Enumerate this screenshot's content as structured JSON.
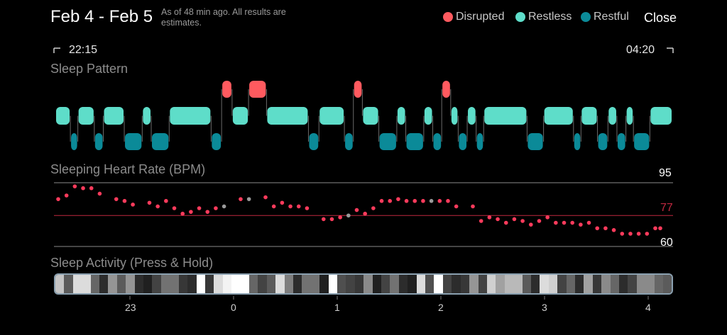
{
  "header": {
    "title": "Feb 4 - Feb 5",
    "subtitle": "As of 48 min ago. All results are estimates.",
    "close_label": "Close"
  },
  "legend": [
    {
      "label": "Disrupted",
      "color": "#ff5a5f"
    },
    {
      "label": "Restless",
      "color": "#5eddc9"
    },
    {
      "label": "Restful",
      "color": "#0b8a98"
    }
  ],
  "time_range": {
    "start": "22:15",
    "end": "04:20"
  },
  "sleep_pattern": {
    "label": "Sleep Pattern",
    "segments": [
      {
        "state": "restless",
        "start": 0,
        "end": 1.0
      },
      {
        "state": "restful",
        "start": 1.0,
        "end": 1.5
      },
      {
        "state": "restless",
        "start": 1.5,
        "end": 2.6
      },
      {
        "state": "restful",
        "start": 2.6,
        "end": 3.2
      },
      {
        "state": "restless",
        "start": 3.2,
        "end": 4.6
      },
      {
        "state": "restful",
        "start": 4.6,
        "end": 5.8
      },
      {
        "state": "restless",
        "start": 5.8,
        "end": 6.4
      },
      {
        "state": "restful",
        "start": 6.4,
        "end": 7.6
      },
      {
        "state": "restless",
        "start": 7.6,
        "end": 10.4
      },
      {
        "state": "restful",
        "start": 10.4,
        "end": 11.1
      },
      {
        "state": "disrupted",
        "start": 11.1,
        "end": 11.8
      },
      {
        "state": "restless",
        "start": 11.8,
        "end": 12.9
      },
      {
        "state": "disrupted",
        "start": 12.9,
        "end": 14.1
      },
      {
        "state": "restless",
        "start": 14.1,
        "end": 16.9
      },
      {
        "state": "restful",
        "start": 16.9,
        "end": 17.6
      },
      {
        "state": "restless",
        "start": 17.6,
        "end": 19.3
      },
      {
        "state": "restful",
        "start": 19.3,
        "end": 19.9
      },
      {
        "state": "disrupted",
        "start": 19.9,
        "end": 20.5
      },
      {
        "state": "restless",
        "start": 20.5,
        "end": 21.6
      },
      {
        "state": "restful",
        "start": 21.6,
        "end": 22.8
      },
      {
        "state": "restless",
        "start": 22.8,
        "end": 23.4
      },
      {
        "state": "restful",
        "start": 23.4,
        "end": 24.6
      },
      {
        "state": "restless",
        "start": 24.6,
        "end": 25.2
      },
      {
        "state": "restful",
        "start": 25.2,
        "end": 25.8
      },
      {
        "state": "disrupted",
        "start": 25.8,
        "end": 26.4
      },
      {
        "state": "restless",
        "start": 26.4,
        "end": 26.9
      },
      {
        "state": "restful",
        "start": 26.9,
        "end": 27.5
      },
      {
        "state": "restless",
        "start": 27.5,
        "end": 28.1
      },
      {
        "state": "restful",
        "start": 28.1,
        "end": 28.6
      },
      {
        "state": "restless",
        "start": 28.6,
        "end": 31.5
      },
      {
        "state": "restful",
        "start": 31.5,
        "end": 32.6
      },
      {
        "state": "restless",
        "start": 32.6,
        "end": 34.6
      },
      {
        "state": "restful",
        "start": 34.6,
        "end": 35.1
      },
      {
        "state": "restless",
        "start": 35.1,
        "end": 36.2
      },
      {
        "state": "restful",
        "start": 36.2,
        "end": 36.9
      },
      {
        "state": "restless",
        "start": 36.9,
        "end": 37.5
      },
      {
        "state": "restful",
        "start": 37.5,
        "end": 38.1
      },
      {
        "state": "restless",
        "start": 38.1,
        "end": 38.6
      },
      {
        "state": "restful",
        "start": 38.6,
        "end": 39.7
      },
      {
        "state": "restless",
        "start": 39.7,
        "end": 41.2
      }
    ],
    "total_units": 41.2
  },
  "heart_rate": {
    "label": "Sleeping Heart Rate (BPM)",
    "ref_lines": [
      {
        "value": 95,
        "label": "95",
        "color": "#8a8a8a",
        "label_color": "#ffffff"
      },
      {
        "value": 77,
        "label": "77",
        "color": "#c0283f",
        "label_color": "#c0283f"
      },
      {
        "value": 60,
        "label": "60",
        "color": "#8a8a8a",
        "label_color": "#ffffff"
      }
    ],
    "ylim": [
      60,
      95
    ],
    "points": [
      {
        "t": 0.0,
        "v": 86
      },
      {
        "t": 0.5,
        "v": 88
      },
      {
        "t": 1.0,
        "v": 93
      },
      {
        "t": 1.5,
        "v": 92
      },
      {
        "t": 2.0,
        "v": 92
      },
      {
        "t": 2.5,
        "v": 89
      },
      {
        "t": 3.5,
        "v": 86
      },
      {
        "t": 4.0,
        "v": 85
      },
      {
        "t": 4.5,
        "v": 83
      },
      {
        "t": 5.5,
        "v": 84
      },
      {
        "t": 6.0,
        "v": 82
      },
      {
        "t": 6.5,
        "v": 85
      },
      {
        "t": 7.0,
        "v": 81
      },
      {
        "t": 7.5,
        "v": 78
      },
      {
        "t": 8.0,
        "v": 79
      },
      {
        "t": 8.5,
        "v": 81
      },
      {
        "t": 9.0,
        "v": 79
      },
      {
        "t": 9.5,
        "v": 81
      },
      {
        "t": 10.0,
        "v": 82,
        "gray": true
      },
      {
        "t": 11.0,
        "v": 86
      },
      {
        "t": 11.5,
        "v": 86,
        "gray": true
      },
      {
        "t": 12.5,
        "v": 87
      },
      {
        "t": 13.0,
        "v": 82
      },
      {
        "t": 13.5,
        "v": 84
      },
      {
        "t": 14.0,
        "v": 82
      },
      {
        "t": 14.5,
        "v": 82
      },
      {
        "t": 15.0,
        "v": 81
      },
      {
        "t": 16.0,
        "v": 75
      },
      {
        "t": 16.5,
        "v": 75
      },
      {
        "t": 17.0,
        "v": 76
      },
      {
        "t": 17.5,
        "v": 77,
        "gray": true
      },
      {
        "t": 18.0,
        "v": 80
      },
      {
        "t": 18.5,
        "v": 78
      },
      {
        "t": 19.0,
        "v": 81
      },
      {
        "t": 19.5,
        "v": 85
      },
      {
        "t": 20.0,
        "v": 85
      },
      {
        "t": 20.5,
        "v": 86
      },
      {
        "t": 21.0,
        "v": 85
      },
      {
        "t": 21.5,
        "v": 85
      },
      {
        "t": 22.0,
        "v": 85
      },
      {
        "t": 22.5,
        "v": 85,
        "gray": true
      },
      {
        "t": 23.0,
        "v": 85
      },
      {
        "t": 23.5,
        "v": 85
      },
      {
        "t": 24.0,
        "v": 82
      },
      {
        "t": 25.0,
        "v": 82
      },
      {
        "t": 25.5,
        "v": 74
      },
      {
        "t": 26.0,
        "v": 76
      },
      {
        "t": 26.5,
        "v": 75
      },
      {
        "t": 27.0,
        "v": 73
      },
      {
        "t": 27.5,
        "v": 75
      },
      {
        "t": 28.0,
        "v": 74
      },
      {
        "t": 28.5,
        "v": 72
      },
      {
        "t": 29.0,
        "v": 74
      },
      {
        "t": 29.5,
        "v": 76
      },
      {
        "t": 30.0,
        "v": 73
      },
      {
        "t": 30.5,
        "v": 73
      },
      {
        "t": 31.0,
        "v": 73
      },
      {
        "t": 31.5,
        "v": 72
      },
      {
        "t": 32.0,
        "v": 73
      },
      {
        "t": 32.5,
        "v": 70
      },
      {
        "t": 33.0,
        "v": 70
      },
      {
        "t": 33.5,
        "v": 69
      },
      {
        "t": 34.0,
        "v": 67
      },
      {
        "t": 34.5,
        "v": 67
      },
      {
        "t": 35.0,
        "v": 67
      },
      {
        "t": 35.5,
        "v": 67
      },
      {
        "t": 36.0,
        "v": 70
      },
      {
        "t": 36.3,
        "v": 70
      }
    ],
    "t_range": [
      0,
      36.3
    ]
  },
  "sleep_activity": {
    "label": "Sleep Activity (Press & Hold)",
    "levels": [
      0.75,
      0.3,
      0.85,
      0.85,
      0.35,
      0.1,
      0.55,
      0.3,
      0.55,
      0.1,
      0.05,
      0.2,
      0.4,
      0.4,
      0.15,
      0.1,
      1.0,
      0.15,
      0.85,
      0.95,
      1.0,
      1.0,
      0.35,
      0.2,
      0.3,
      0.85,
      0.45,
      0.1,
      0.4,
      0.4,
      0.05,
      1.0,
      0.25,
      0.2,
      0.15,
      0.5,
      0.05,
      0.2,
      0.4,
      0.1,
      0.05,
      0.85,
      0.25,
      1.0,
      0.2,
      0.1,
      0.15,
      0.55,
      0.2,
      0.8,
      0.6,
      0.7,
      0.7,
      0.3,
      0.1,
      0.85,
      0.8,
      0.2,
      0.35,
      0.1,
      0.6,
      0.15,
      0.5,
      0.35,
      0.1,
      0.2,
      0.5,
      0.5,
      0.35,
      0.3
    ]
  },
  "x_axis": {
    "ticks": [
      "23",
      "0",
      "1",
      "2",
      "3",
      "4"
    ]
  }
}
